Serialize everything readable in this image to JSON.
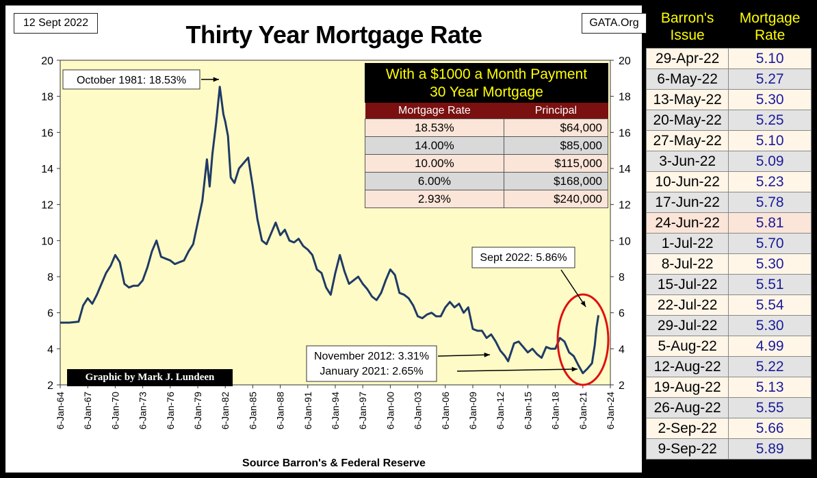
{
  "header": {
    "date": "12 Sept 2022",
    "site": "GATA.Org",
    "title": "Thirty Year Mortgage Rate"
  },
  "footer": {
    "source": "Source Barron's & Federal Reserve",
    "credit": "Graphic by Mark J. Lundeen"
  },
  "colors": {
    "plot_bg": "#fffbc6",
    "line": "#1f3a66",
    "circle": "#e01010",
    "table_header": "#7a1010",
    "header_text": "#ffff00",
    "rate_text": "#1a1a99"
  },
  "chart_data": {
    "type": "line",
    "title": "Thirty Year Mortgage Rate",
    "xlabel": "",
    "ylabel": "",
    "ylim": [
      2,
      20
    ],
    "y_ticks": [
      2,
      4,
      6,
      8,
      10,
      12,
      14,
      16,
      18,
      20
    ],
    "x_tick_labels": [
      "6-Jan-64",
      "6-Jan-67",
      "6-Jan-70",
      "6-Jan-73",
      "6-Jan-76",
      "6-Jan-79",
      "6-Jan-82",
      "6-Jan-85",
      "6-Jan-88",
      "6-Jan-91",
      "6-Jan-94",
      "6-Jan-97",
      "6-Jan-00",
      "6-Jan-03",
      "6-Jan-06",
      "6-Jan-09",
      "6-Jan-12",
      "6-Jan-15",
      "6-Jan-18",
      "6-Jan-21",
      "6-Jan-24"
    ],
    "x_range": [
      1964.0,
      2024.0
    ],
    "grid": false,
    "series": [
      {
        "x": [
          1964.0,
          1965.0,
          1966.0,
          1966.5,
          1967.0,
          1967.5,
          1968.0,
          1968.5,
          1969.0,
          1969.5,
          1970.0,
          1970.5,
          1971.0,
          1971.5,
          1972.0,
          1972.5,
          1973.0,
          1973.5,
          1974.0,
          1974.5,
          1975.0,
          1975.5,
          1976.0,
          1976.5,
          1977.0,
          1977.5,
          1978.0,
          1978.5,
          1979.0,
          1979.5,
          1980.0,
          1980.3,
          1980.6,
          1981.0,
          1981.4,
          1981.8,
          1982.0,
          1982.3,
          1982.6,
          1983.0,
          1983.5,
          1984.0,
          1984.5,
          1985.0,
          1985.5,
          1986.0,
          1986.5,
          1987.0,
          1987.5,
          1988.0,
          1988.5,
          1989.0,
          1989.5,
          1990.0,
          1990.5,
          1991.0,
          1991.5,
          1992.0,
          1992.5,
          1993.0,
          1993.5,
          1994.0,
          1994.5,
          1995.0,
          1995.5,
          1996.0,
          1996.5,
          1997.0,
          1997.5,
          1998.0,
          1998.5,
          1999.0,
          1999.5,
          2000.0,
          2000.5,
          2001.0,
          2001.5,
          2002.0,
          2002.5,
          2003.0,
          2003.5,
          2004.0,
          2004.5,
          2005.0,
          2005.5,
          2006.0,
          2006.5,
          2007.0,
          2007.5,
          2008.0,
          2008.5,
          2009.0,
          2009.5,
          2010.0,
          2010.5,
          2011.0,
          2011.5,
          2012.0,
          2012.5,
          2012.85,
          2013.5,
          2014.0,
          2014.5,
          2015.0,
          2015.5,
          2016.0,
          2016.5,
          2017.0,
          2017.5,
          2018.0,
          2018.5,
          2019.0,
          2019.5,
          2020.0,
          2020.5,
          2021.0,
          2021.5,
          2022.0,
          2022.3,
          2022.5,
          2022.7
        ],
        "values": [
          5.45,
          5.45,
          5.5,
          6.4,
          6.8,
          6.5,
          7.0,
          7.6,
          8.2,
          8.6,
          9.2,
          8.8,
          7.6,
          7.4,
          7.5,
          7.5,
          7.8,
          8.5,
          9.4,
          10.0,
          9.1,
          9.0,
          8.9,
          8.7,
          8.8,
          8.9,
          9.4,
          9.8,
          11.0,
          12.2,
          14.5,
          13.0,
          14.8,
          16.5,
          18.53,
          17.0,
          16.6,
          15.8,
          13.5,
          13.2,
          14.0,
          14.3,
          14.6,
          13.0,
          11.2,
          10.0,
          9.8,
          10.4,
          11.0,
          10.3,
          10.6,
          10.0,
          9.9,
          10.1,
          9.7,
          9.5,
          9.2,
          8.4,
          8.2,
          7.4,
          7.0,
          8.2,
          9.2,
          8.3,
          7.6,
          7.8,
          8.0,
          7.6,
          7.3,
          6.9,
          6.7,
          7.1,
          7.8,
          8.4,
          8.1,
          7.1,
          7.0,
          6.8,
          6.4,
          5.8,
          5.7,
          5.9,
          6.0,
          5.8,
          5.8,
          6.3,
          6.6,
          6.3,
          6.5,
          6.0,
          6.3,
          5.1,
          5.0,
          5.0,
          4.6,
          4.8,
          4.4,
          3.9,
          3.6,
          3.31,
          4.3,
          4.4,
          4.1,
          3.8,
          4.0,
          3.7,
          3.5,
          4.1,
          4.0,
          4.0,
          4.6,
          4.4,
          3.8,
          3.6,
          3.1,
          2.65,
          2.9,
          3.2,
          4.2,
          5.2,
          5.86
        ]
      }
    ],
    "annotations": [
      "October 1981: 18.53%",
      "Sept 2022: 5.86%",
      "November 2012: 3.31%",
      "January 2021: 2.65%"
    ]
  },
  "payment_table": {
    "heading_line1": "With a $1000 a Month Payment",
    "heading_line2": "30 Year Mortgage",
    "columns": [
      "Mortgage Rate",
      "Principal"
    ],
    "rows": [
      {
        "rate": "18.53%",
        "principal": "$64,000"
      },
      {
        "rate": "14.00%",
        "principal": "$85,000"
      },
      {
        "rate": "10.00%",
        "principal": "$115,000"
      },
      {
        "rate": "6.00%",
        "principal": "$168,000"
      },
      {
        "rate": "2.93%",
        "principal": "$240,000"
      }
    ]
  },
  "rate_table": {
    "col1_line1": "Barron's",
    "col1_line2": "Issue",
    "col2_line1": "Mortgage",
    "col2_line2": "Rate",
    "rows": [
      {
        "issue": "29-Apr-22",
        "rate": "5.10"
      },
      {
        "issue": "6-May-22",
        "rate": "5.27"
      },
      {
        "issue": "13-May-22",
        "rate": "5.30"
      },
      {
        "issue": "20-May-22",
        "rate": "5.25"
      },
      {
        "issue": "27-May-22",
        "rate": "5.10"
      },
      {
        "issue": "3-Jun-22",
        "rate": "5.09"
      },
      {
        "issue": "10-Jun-22",
        "rate": "5.23"
      },
      {
        "issue": "17-Jun-22",
        "rate": "5.78"
      },
      {
        "issue": "24-Jun-22",
        "rate": "5.81"
      },
      {
        "issue": "1-Jul-22",
        "rate": "5.70"
      },
      {
        "issue": "8-Jul-22",
        "rate": "5.30"
      },
      {
        "issue": "15-Jul-22",
        "rate": "5.51"
      },
      {
        "issue": "22-Jul-22",
        "rate": "5.54"
      },
      {
        "issue": "29-Jul-22",
        "rate": "5.30"
      },
      {
        "issue": "5-Aug-22",
        "rate": "4.99"
      },
      {
        "issue": "12-Aug-22",
        "rate": "5.22"
      },
      {
        "issue": "19-Aug-22",
        "rate": "5.13"
      },
      {
        "issue": "26-Aug-22",
        "rate": "5.55"
      },
      {
        "issue": "2-Sep-22",
        "rate": "5.66"
      },
      {
        "issue": "9-Sep-22",
        "rate": "5.89"
      }
    ]
  }
}
